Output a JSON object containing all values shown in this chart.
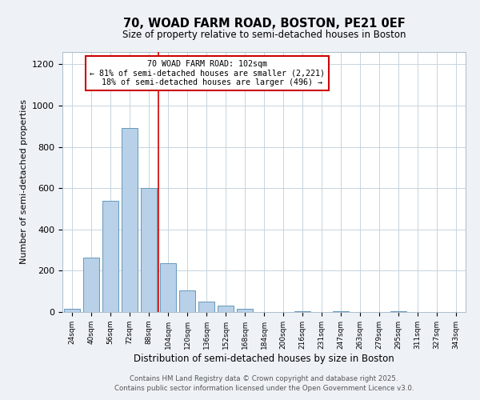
{
  "title1": "70, WOAD FARM ROAD, BOSTON, PE21 0EF",
  "title2": "Size of property relative to semi-detached houses in Boston",
  "xlabel": "Distribution of semi-detached houses by size in Boston",
  "ylabel": "Number of semi-detached properties",
  "categories": [
    "24sqm",
    "40sqm",
    "56sqm",
    "72sqm",
    "88sqm",
    "104sqm",
    "120sqm",
    "136sqm",
    "152sqm",
    "168sqm",
    "184sqm",
    "200sqm",
    "216sqm",
    "231sqm",
    "247sqm",
    "263sqm",
    "279sqm",
    "295sqm",
    "311sqm",
    "327sqm",
    "343sqm"
  ],
  "values": [
    15,
    262,
    537,
    893,
    600,
    237,
    105,
    52,
    32,
    15,
    0,
    0,
    5,
    0,
    5,
    0,
    0,
    5,
    0,
    0,
    0
  ],
  "bar_color": "#b8d0e8",
  "bar_edge_color": "#6699bb",
  "vline_index": 5,
  "annotation_text": "70 WOAD FARM ROAD: 102sqm\n← 81% of semi-detached houses are smaller (2,221)\n  18% of semi-detached houses are larger (496) →",
  "annotation_box_color": "#ffffff",
  "annotation_border_color": "#cc0000",
  "vline_color": "#cc0000",
  "ylim": [
    0,
    1260
  ],
  "yticks": [
    0,
    200,
    400,
    600,
    800,
    1000,
    1200
  ],
  "footer1": "Contains HM Land Registry data © Crown copyright and database right 2025.",
  "footer2": "Contains public sector information licensed under the Open Government Licence v3.0.",
  "bg_color": "#eef2f7",
  "plot_bg_color": "#ffffff",
  "grid_color": "#c8d4e0"
}
